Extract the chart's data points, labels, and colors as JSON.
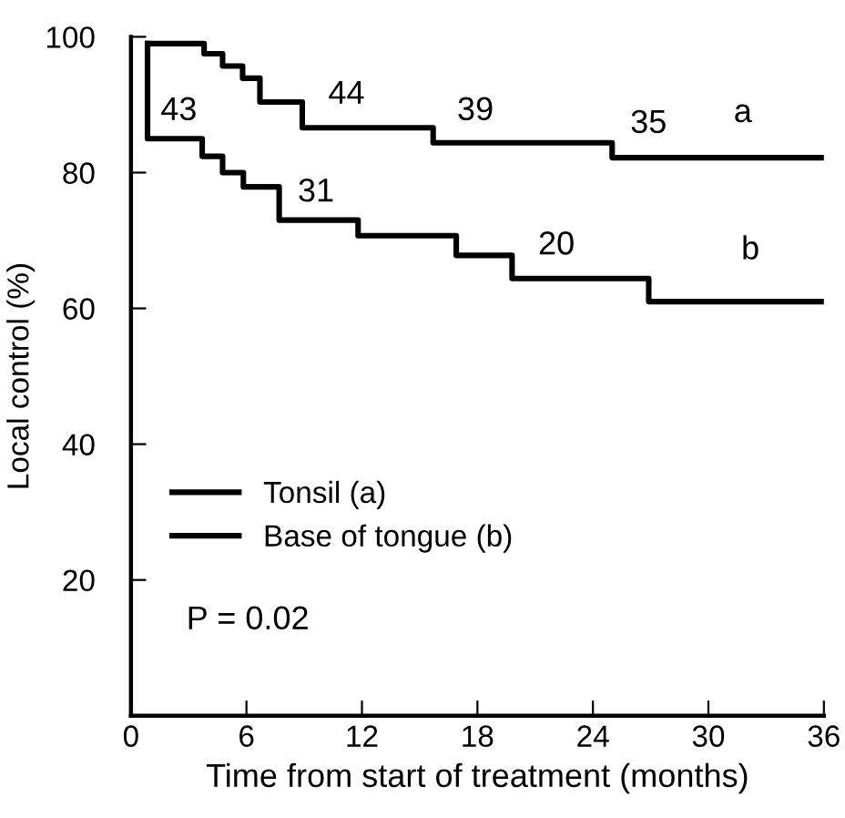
{
  "chart_data": {
    "type": "step",
    "xlabel": "Time from start of treatment (months)",
    "ylabel": "Local control (%)",
    "series": [
      {
        "name": "Tonsil (a)",
        "color": "#000000",
        "x": [
          0.86,
          3.8,
          4.76,
          5.8,
          6.7,
          8.9,
          15.7,
          25.0,
          36
        ],
        "values": [
          99,
          97.5,
          95.7,
          93.9,
          90.4,
          86.6,
          84.4,
          82.2,
          82.2
        ]
      },
      {
        "name": "Base of tongue (b)",
        "color": "#000000",
        "x": [
          0.86,
          0.86,
          3.7,
          4.76,
          5.84,
          7.7,
          11.8,
          16.9,
          19.8,
          26.9,
          36
        ],
        "values": [
          99,
          85,
          82.4,
          80,
          77.9,
          73.0,
          70.7,
          67.8,
          64.4,
          61.0,
          61.0
        ]
      }
    ],
    "annotations": [
      "43",
      "44",
      "39",
      "35",
      "31",
      "20",
      "a",
      "b",
      "P = 0.02"
    ],
    "xlim": [
      0,
      36
    ],
    "ylim": [
      0,
      100
    ],
    "xticks": [
      0,
      6,
      12,
      18,
      24,
      30,
      36
    ],
    "yticks": [
      20,
      40,
      60,
      80,
      100
    ],
    "grid": false,
    "legend": "bottom left",
    "line_style": "solid",
    "marker": "none"
  }
}
